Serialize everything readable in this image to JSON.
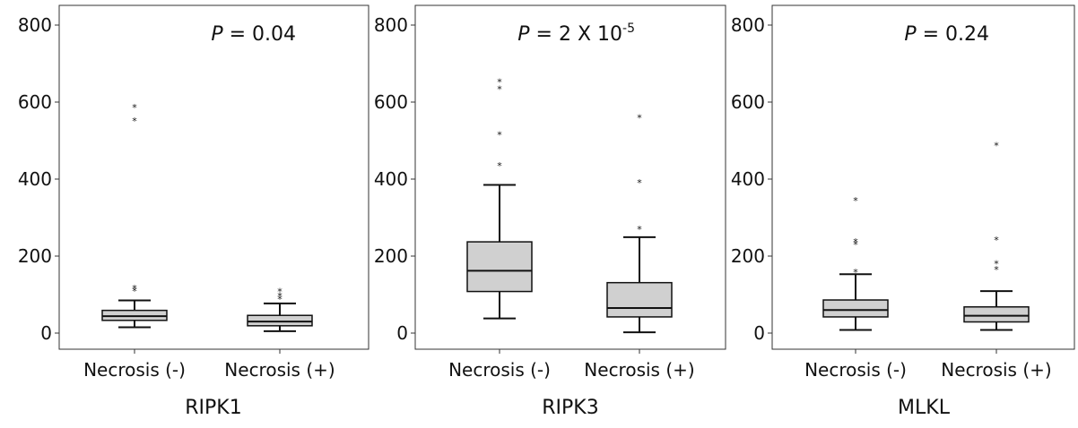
{
  "chart_data": [
    {
      "type": "box",
      "title": "RIPK1",
      "annotation": {
        "italic": "P",
        "text": " =  0.04",
        "superscript": ""
      },
      "ylim": [
        0,
        800
      ],
      "yticks": [
        "0",
        "200",
        "400",
        "600",
        "800"
      ],
      "categories": [
        "Necrosis (-)",
        "Necrosis (+)"
      ],
      "boxes": [
        {
          "min": 15,
          "q1": 33,
          "median": 44,
          "q3": 59,
          "max": 85,
          "outliers": [
            112,
            119,
            553,
            588
          ]
        },
        {
          "min": 5,
          "q1": 19,
          "median": 30,
          "q3": 46,
          "max": 77,
          "outliers": [
            91,
            99,
            111
          ]
        }
      ]
    },
    {
      "type": "box",
      "title": "RIPK3",
      "annotation": {
        "italic": "P",
        "text": " =  2 X 10",
        "superscript": "-5"
      },
      "ylim": [
        0,
        800
      ],
      "yticks": [
        "0",
        "200",
        "400",
        "600",
        "800"
      ],
      "categories": [
        "Necrosis (-)",
        "Necrosis (+)"
      ],
      "boxes": [
        {
          "min": 38,
          "q1": 108,
          "median": 162,
          "q3": 237,
          "max": 385,
          "outliers": [
            437,
            517,
            636,
            655
          ]
        },
        {
          "min": 2,
          "q1": 42,
          "median": 65,
          "q3": 131,
          "max": 249,
          "outliers": [
            272,
            393,
            562
          ]
        }
      ]
    },
    {
      "type": "box",
      "title": "MLKL",
      "annotation": {
        "italic": "P",
        "text": " =  0.24",
        "superscript": ""
      },
      "ylim": [
        0,
        800
      ],
      "yticks": [
        "0",
        "200",
        "400",
        "600",
        "800"
      ],
      "categories": [
        "Necrosis (-)",
        "Necrosis (+)"
      ],
      "boxes": [
        {
          "min": 8,
          "q1": 42,
          "median": 60,
          "q3": 86,
          "max": 153,
          "outliers": [
            160,
            233,
            240,
            347
          ]
        },
        {
          "min": 8,
          "q1": 29,
          "median": 45,
          "q3": 68,
          "max": 109,
          "outliers": [
            168,
            182,
            244,
            490
          ]
        }
      ]
    }
  ]
}
